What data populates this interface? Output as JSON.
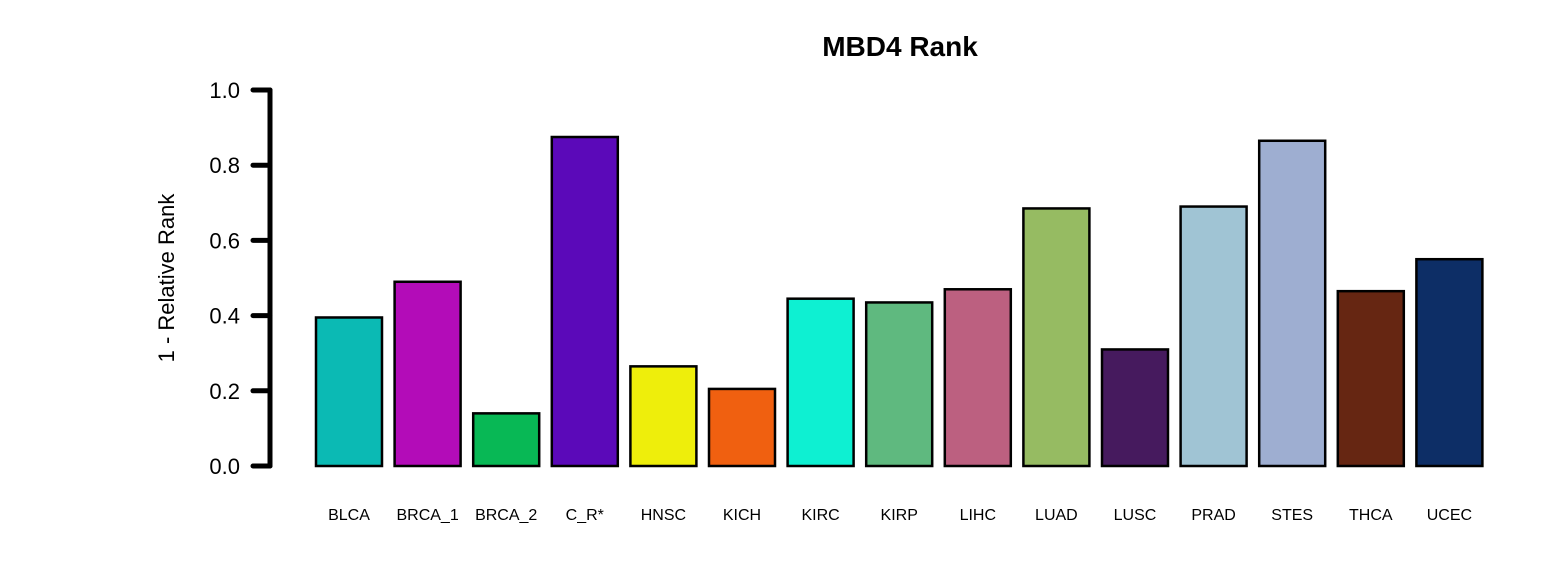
{
  "chart_data": {
    "type": "bar",
    "title": "MBD4 Rank",
    "xlabel": "",
    "ylabel": "1 - Relative Rank",
    "ylim": [
      0,
      1
    ],
    "yticks": [
      "0.0",
      "0.2",
      "0.4",
      "0.6",
      "0.8",
      "1.0"
    ],
    "ytick_values": [
      0,
      0.2,
      0.4,
      0.6,
      0.8,
      1.0
    ],
    "grid": false,
    "legend": "none",
    "categories": [
      "BLCA",
      "BRCA_1",
      "BRCA_2",
      "C_R*",
      "HNSC",
      "KICH",
      "KIRC",
      "KIRP",
      "LIHC",
      "LUAD",
      "LUSC",
      "PRAD",
      "STES",
      "THCA",
      "UCEC"
    ],
    "values": [
      0.395,
      0.49,
      0.14,
      0.875,
      0.265,
      0.205,
      0.445,
      0.435,
      0.47,
      0.685,
      0.31,
      0.69,
      0.865,
      0.465,
      0.55
    ],
    "colors": [
      "#0bbab4",
      "#b30cb8",
      "#08b855",
      "#5b09b9",
      "#eeee0b",
      "#f06010",
      "#0ef0d2",
      "#5fb97f",
      "#bc6080",
      "#96bb62",
      "#461a5e",
      "#a0c4d4",
      "#9eaed1",
      "#662612",
      "#0d2e66"
    ]
  }
}
